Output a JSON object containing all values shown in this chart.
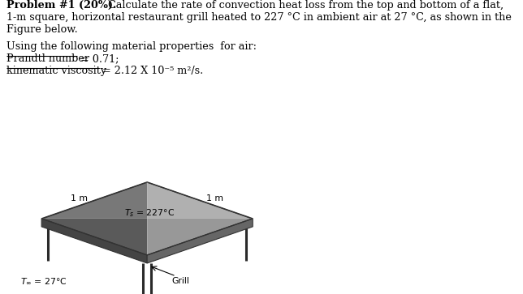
{
  "title_bold": "Problem #1 (20%).",
  "title_rest": " Calculate the rate of convection heat loss from the top and bottom of a flat,",
  "line2": "1-m square, horizontal restaurant grill heated to 227 °C in ambient air at 27 °C, as shown in the",
  "line3": "Figure below.",
  "line4": "Using the following material properties  for air:",
  "line5a": "Prandtl number",
  "line5b": " = 0.71;",
  "line6a": "kinematic viscosity",
  "line6b": " = 2.12 X 10⁻⁵ m²/s.",
  "bg_color": "#e8e8e8",
  "fig_bg": "#ffffff",
  "label_Ts": "$T_s$ = 227°C",
  "label_Tinf": "$T_\\infty$ = 27°C",
  "label_grill": "Grill",
  "label_1m_left": "1 m",
  "label_1m_right": "1 m",
  "underline_color": "#cc0000",
  "text_fontsize": 9.2
}
